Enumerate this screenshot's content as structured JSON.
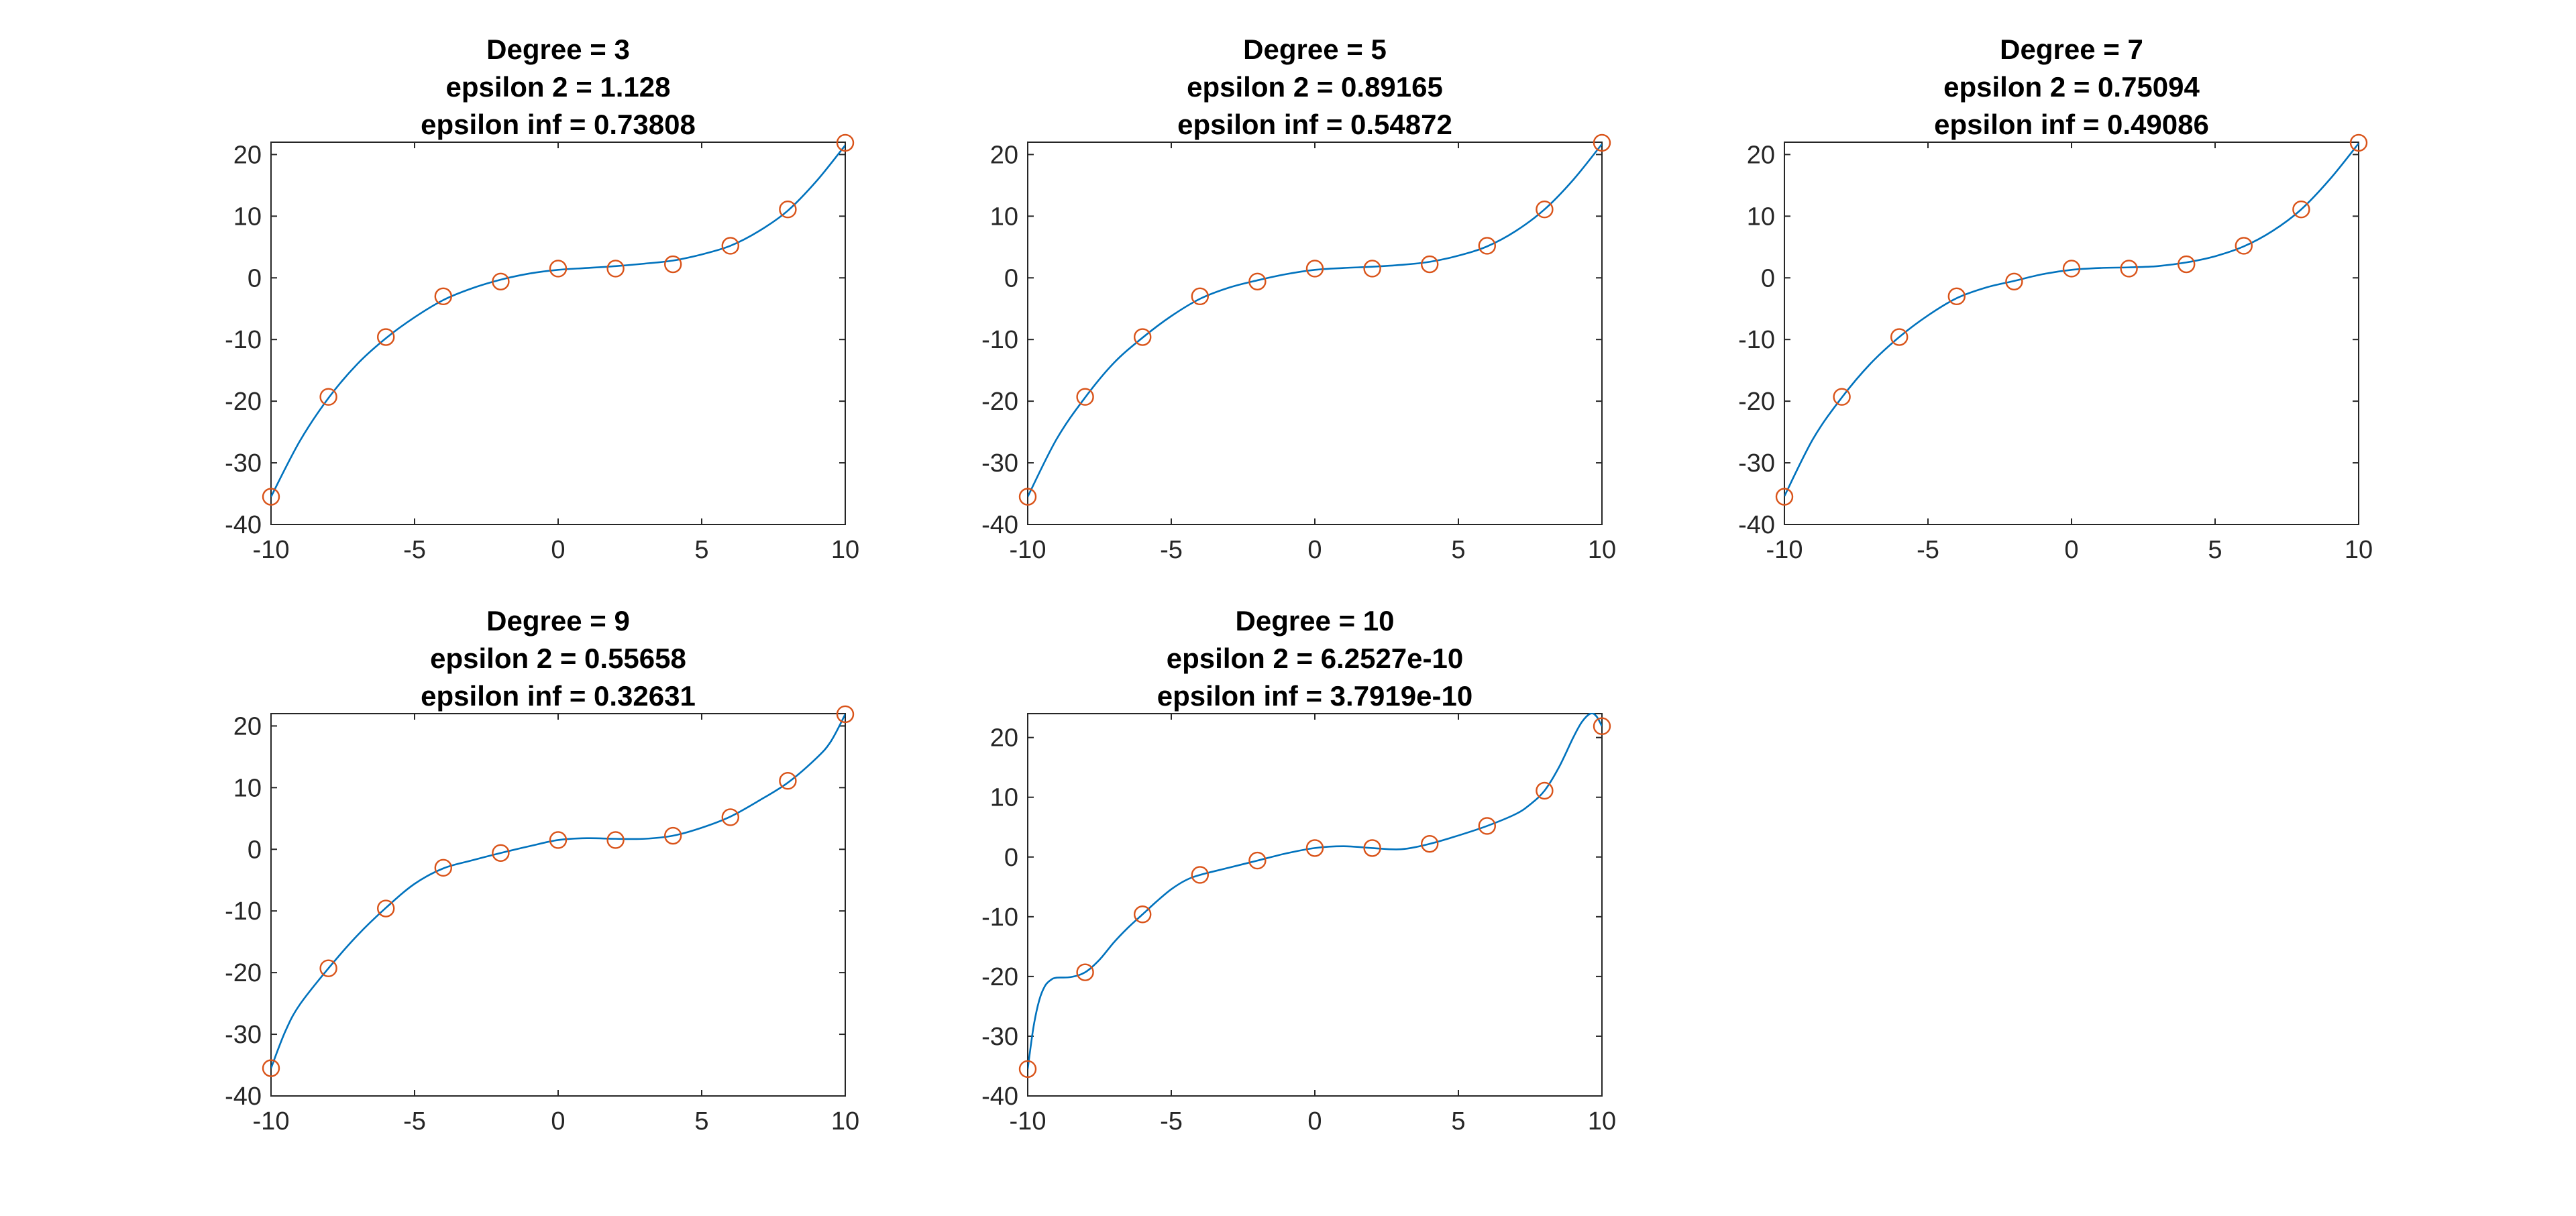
{
  "colors": {
    "fit_line": "#0072bd",
    "data_marker": "#d95319",
    "axes": "#262626",
    "background": "#ffffff"
  },
  "chart_data": [
    {
      "type": "line",
      "title": [
        "Degree = 3",
        "epsilon 2 = 1.128",
        "epsilon inf = 0.73808"
      ],
      "xlim": [
        -10,
        10
      ],
      "ylim": [
        -40,
        22
      ],
      "xticks": [
        -10,
        -5,
        0,
        5,
        10
      ],
      "yticks": [
        -40,
        -30,
        -20,
        -10,
        0,
        10,
        20
      ],
      "grid": false,
      "series": [
        {
          "kind": "markers",
          "x": [
            -10,
            -8,
            -6,
            -4,
            -2,
            0,
            2,
            4,
            6,
            8,
            10
          ],
          "y": [
            -35.5,
            -19.3,
            -9.6,
            -3,
            -0.6,
            1.5,
            1.5,
            2.2,
            5.2,
            11.1,
            21.9
          ]
        },
        {
          "kind": "fit",
          "x": [
            -10,
            -9,
            -8,
            -7,
            -6,
            -5,
            -4,
            -3,
            -2,
            -1,
            0,
            1,
            2,
            3,
            4,
            5,
            6,
            7,
            8,
            9,
            10
          ],
          "y": [
            -35.5,
            -26.5,
            -19.5,
            -14,
            -9.8,
            -6.4,
            -3.6,
            -1.7,
            -0.3,
            0.7,
            1.3,
            1.6,
            1.9,
            2.3,
            2.8,
            3.8,
            5.2,
            7.6,
            10.9,
            15.7,
            21.5
          ]
        }
      ]
    },
    {
      "type": "line",
      "title": [
        "Degree = 5",
        "epsilon 2 = 0.89165",
        "epsilon inf = 0.54872"
      ],
      "xlim": [
        -10,
        10
      ],
      "ylim": [
        -40,
        22
      ],
      "xticks": [
        -10,
        -5,
        0,
        5,
        10
      ],
      "yticks": [
        -40,
        -30,
        -20,
        -10,
        0,
        10,
        20
      ],
      "grid": false,
      "series": [
        {
          "kind": "markers",
          "x": [
            -10,
            -8,
            -6,
            -4,
            -2,
            0,
            2,
            4,
            6,
            8,
            10
          ],
          "y": [
            -35.5,
            -19.3,
            -9.6,
            -3,
            -0.6,
            1.5,
            1.5,
            2.2,
            5.2,
            11.1,
            21.9
          ]
        },
        {
          "kind": "fit",
          "x": [
            -10,
            -9,
            -8,
            -7,
            -6,
            -5,
            -4,
            -3,
            -2,
            -1,
            0,
            1,
            2,
            3,
            4,
            5,
            6,
            7,
            8,
            9,
            10
          ],
          "y": [
            -35.5,
            -26.2,
            -19.4,
            -13.8,
            -9.7,
            -6.2,
            -3.4,
            -1.6,
            -0.4,
            0.6,
            1.3,
            1.6,
            1.8,
            2.1,
            2.6,
            3.6,
            5.1,
            7.6,
            11.1,
            15.9,
            21.7
          ]
        }
      ]
    },
    {
      "type": "line",
      "title": [
        "Degree = 7",
        "epsilon 2 = 0.75094",
        "epsilon inf = 0.49086"
      ],
      "xlim": [
        -10,
        10
      ],
      "ylim": [
        -40,
        22
      ],
      "xticks": [
        -10,
        -5,
        0,
        5,
        10
      ],
      "yticks": [
        -40,
        -30,
        -20,
        -10,
        0,
        10,
        20
      ],
      "grid": false,
      "series": [
        {
          "kind": "markers",
          "x": [
            -10,
            -8,
            -6,
            -4,
            -2,
            0,
            2,
            4,
            6,
            8,
            10
          ],
          "y": [
            -35.5,
            -19.3,
            -9.6,
            -3,
            -0.6,
            1.5,
            1.5,
            2.2,
            5.2,
            11.1,
            21.9
          ]
        },
        {
          "kind": "fit",
          "x": [
            -10,
            -9,
            -8,
            -7,
            -6,
            -5,
            -4,
            -3,
            -2,
            -1,
            0,
            1,
            2,
            3,
            4,
            5,
            6,
            7,
            8,
            9,
            10
          ],
          "y": [
            -35.4,
            -26.1,
            -19.4,
            -13.9,
            -9.6,
            -6.1,
            -3.3,
            -1.6,
            -0.5,
            0.6,
            1.3,
            1.6,
            1.7,
            1.9,
            2.5,
            3.5,
            5.1,
            7.6,
            11.1,
            16,
            21.8
          ]
        }
      ]
    },
    {
      "type": "line",
      "title": [
        "Degree = 9",
        "epsilon 2 = 0.55658",
        "epsilon inf = 0.32631"
      ],
      "xlim": [
        -10,
        10
      ],
      "ylim": [
        -40,
        22
      ],
      "xticks": [
        -10,
        -5,
        0,
        5,
        10
      ],
      "yticks": [
        -40,
        -30,
        -20,
        -10,
        0,
        10,
        20
      ],
      "grid": false,
      "series": [
        {
          "kind": "markers",
          "x": [
            -10,
            -8,
            -6,
            -4,
            -2,
            0,
            2,
            4,
            6,
            8,
            10
          ],
          "y": [
            -35.5,
            -19.3,
            -9.6,
            -3,
            -0.6,
            1.5,
            1.5,
            2.2,
            5.2,
            11.1,
            21.9
          ]
        },
        {
          "kind": "fit",
          "x": [
            -10,
            -9.5,
            -9,
            -8,
            -7,
            -6,
            -5,
            -4,
            -3,
            -2,
            -1,
            0,
            1,
            2,
            3,
            4,
            5,
            6,
            7,
            8,
            9,
            9.5,
            10
          ],
          "y": [
            -35.5,
            -29.5,
            -25.2,
            -19.3,
            -14,
            -9.5,
            -5.6,
            -3.1,
            -1.8,
            -0.6,
            0.5,
            1.5,
            1.8,
            1.7,
            1.7,
            2.2,
            3.5,
            5.3,
            7.9,
            10.8,
            14.8,
            17.5,
            21.9
          ]
        }
      ]
    },
    {
      "type": "line",
      "title": [
        "Degree = 10",
        "epsilon 2 = 6.2527e-10",
        "epsilon inf = 3.7919e-10"
      ],
      "xlim": [
        -10,
        10
      ],
      "ylim": [
        -40,
        24
      ],
      "xticks": [
        -10,
        -5,
        0,
        5,
        10
      ],
      "yticks": [
        -40,
        -30,
        -20,
        -10,
        0,
        10,
        20
      ],
      "grid": false,
      "series": [
        {
          "kind": "markers",
          "x": [
            -10,
            -8,
            -6,
            -4,
            -2,
            0,
            2,
            4,
            6,
            8,
            10
          ],
          "y": [
            -35.5,
            -19.3,
            -9.6,
            -3,
            -0.6,
            1.5,
            1.5,
            2.2,
            5.2,
            11.1,
            21.9
          ]
        },
        {
          "kind": "fit",
          "x": [
            -10,
            -9.8,
            -9.6,
            -9.4,
            -9.2,
            -9,
            -8.5,
            -8,
            -7.5,
            -7,
            -6.5,
            -6,
            -5.5,
            -5,
            -4.5,
            -4,
            -3,
            -2,
            -1,
            0,
            1,
            2,
            3,
            4,
            5,
            6,
            7,
            7.5,
            8,
            8.5,
            9,
            9.3,
            9.6,
            9.8,
            10
          ],
          "y": [
            -35.5,
            -28.5,
            -24,
            -21.6,
            -20.6,
            -20.2,
            -20.1,
            -19.3,
            -17.2,
            -14.3,
            -11.8,
            -9.6,
            -7.4,
            -5.4,
            -3.9,
            -3,
            -1.8,
            -0.6,
            0.6,
            1.5,
            1.8,
            1.5,
            1.3,
            2.2,
            3.6,
            5.2,
            7.2,
            8.8,
            11.1,
            15,
            20,
            22.6,
            24,
            23.6,
            21.9
          ]
        }
      ]
    }
  ]
}
